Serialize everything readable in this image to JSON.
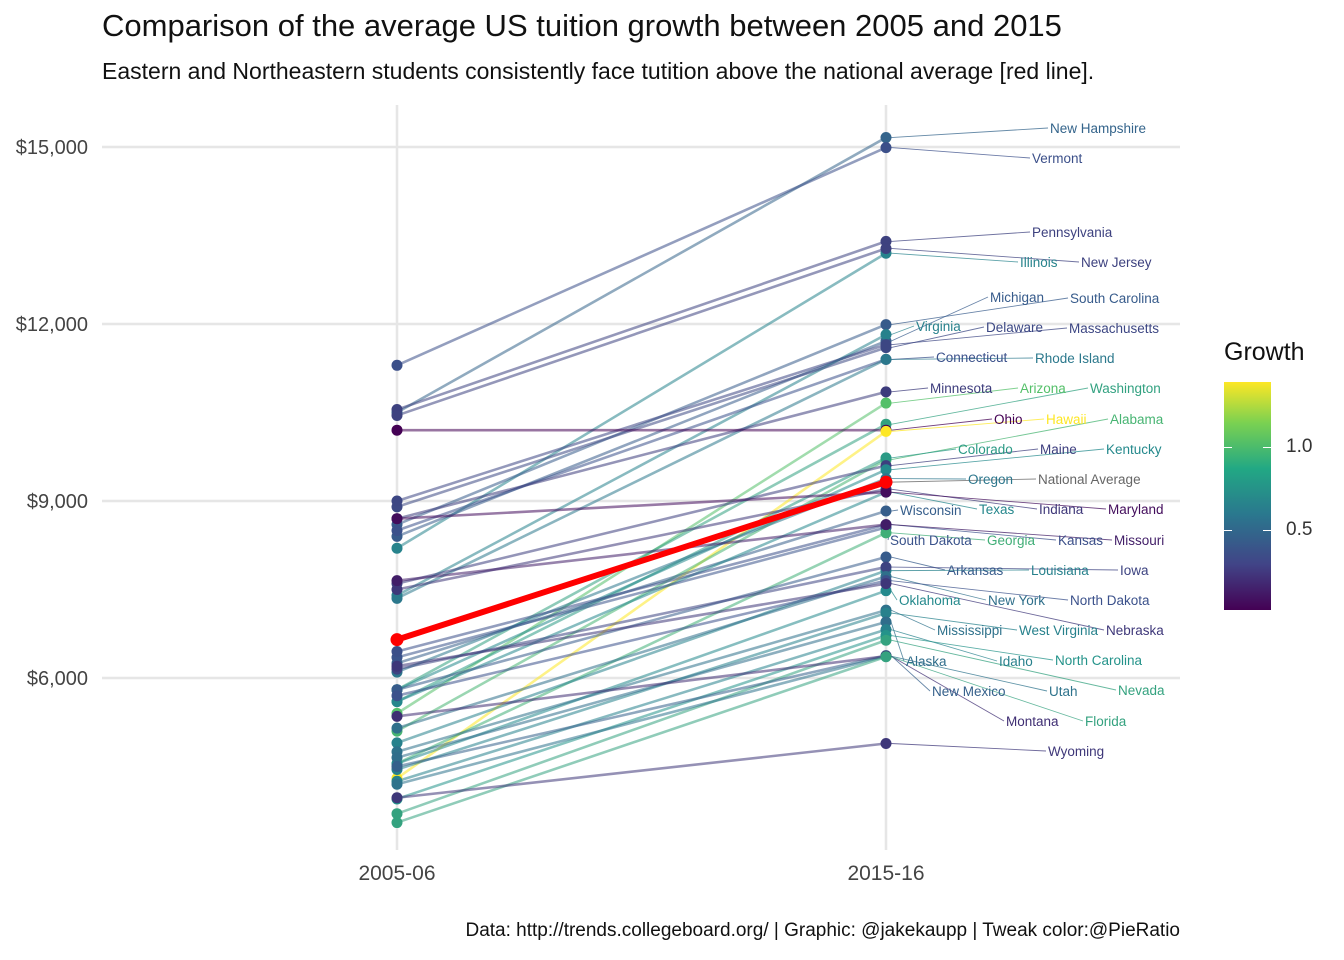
{
  "title": "Comparison of the average US tuition growth between 2005 and 2015",
  "subtitle": "Eastern and Northeastern students consistently face tutition above the national average [red line].",
  "caption": "Data: http://trends.collegeboard.org/ | Graphic: @jakekaupp | Tweak color:@PieRatio",
  "legend": {
    "title": "Growth",
    "ticks": [
      "1.0",
      "0.5"
    ]
  },
  "colors": {
    "highlight": "#ff0000",
    "grid": "#e5e5e5",
    "label_gray": "#666666"
  },
  "chart_data": {
    "type": "line",
    "x": [
      "2005-06",
      "2015-16"
    ],
    "yticks": [
      "$6,000",
      "$9,000",
      "$12,000",
      "$15,000"
    ],
    "ylim": [
      3000,
      15800
    ],
    "legend_position": "right",
    "series": [
      {
        "name": "New Hampshire",
        "values": [
          10500,
          15160
        ],
        "growth": 0.44
      },
      {
        "name": "Vermont",
        "values": [
          11300,
          14990
        ],
        "growth": 0.33
      },
      {
        "name": "Pennsylvania",
        "values": [
          10550,
          13400
        ],
        "growth": 0.27
      },
      {
        "name": "Illinois",
        "values": [
          8200,
          13200
        ],
        "growth": 0.61
      },
      {
        "name": "New Jersey",
        "values": [
          10450,
          13280
        ],
        "growth": 0.27
      },
      {
        "name": "Michigan",
        "values": [
          8400,
          11710
        ],
        "growth": 0.39
      },
      {
        "name": "South Carolina",
        "values": [
          8600,
          11990
        ],
        "growth": 0.39
      },
      {
        "name": "Virginia",
        "values": [
          7400,
          11820
        ],
        "growth": 0.6
      },
      {
        "name": "Delaware",
        "values": [
          8900,
          11600
        ],
        "growth": 0.3
      },
      {
        "name": "Massachusetts",
        "values": [
          9000,
          11650
        ],
        "growth": 0.29
      },
      {
        "name": "Connecticut",
        "values": [
          8500,
          11400
        ],
        "growth": 0.34
      },
      {
        "name": "Rhode Island",
        "values": [
          7350,
          11400
        ],
        "growth": 0.55
      },
      {
        "name": "Minnesota",
        "values": [
          8700,
          10850
        ],
        "growth": 0.25
      },
      {
        "name": "Arizona",
        "values": [
          5400,
          10660
        ],
        "growth": 0.97
      },
      {
        "name": "Washington",
        "values": [
          5800,
          10300
        ],
        "growth": 0.78
      },
      {
        "name": "Ohio",
        "values": [
          10200,
          10200
        ],
        "growth": 0.0
      },
      {
        "name": "Hawaii",
        "values": [
          4300,
          10180
        ],
        "growth": 1.37
      },
      {
        "name": "Alabama",
        "values": [
          5100,
          9700
        ],
        "growth": 0.9
      },
      {
        "name": "Colorado",
        "values": [
          5600,
          9730
        ],
        "growth": 0.74
      },
      {
        "name": "Maine",
        "values": [
          7600,
          9600
        ],
        "growth": 0.26
      },
      {
        "name": "Kentucky",
        "values": [
          5800,
          9530
        ],
        "growth": 0.64
      },
      {
        "name": "Oregon",
        "values": [
          6100,
          9380
        ],
        "growth": 0.54
      },
      {
        "name": "National Average",
        "values": [
          6650,
          9320
        ],
        "growth": 0.4
      },
      {
        "name": "Wisconsin",
        "values": [
          6250,
          8830
        ],
        "growth": 0.41
      },
      {
        "name": "Texas",
        "values": [
          5600,
          9150
        ],
        "growth": 0.63
      },
      {
        "name": "Indiana",
        "values": [
          7500,
          9200
        ],
        "growth": 0.23
      },
      {
        "name": "Maryland",
        "values": [
          8700,
          9150
        ],
        "growth": 0.05
      },
      {
        "name": "South Dakota",
        "values": [
          6350,
          8550
        ],
        "growth": 0.35
      },
      {
        "name": "Georgia",
        "values": [
          4550,
          8460
        ],
        "growth": 0.86
      },
      {
        "name": "Kansas",
        "values": [
          6450,
          8600
        ],
        "growth": 0.33
      },
      {
        "name": "Missouri",
        "values": [
          7650,
          8600
        ],
        "growth": 0.12
      },
      {
        "name": "Arkansas",
        "values": [
          5800,
          8050
        ],
        "growth": 0.39
      },
      {
        "name": "Louisiana",
        "values": [
          4900,
          7820
        ],
        "growth": 0.6
      },
      {
        "name": "Iowa",
        "values": [
          6150,
          7880
        ],
        "growth": 0.28
      },
      {
        "name": "Oklahoma",
        "values": [
          4550,
          7480
        ],
        "growth": 0.64
      },
      {
        "name": "New York",
        "values": [
          5150,
          7720
        ],
        "growth": 0.5
      },
      {
        "name": "North Dakota",
        "values": [
          5700,
          7650
        ],
        "growth": 0.34
      },
      {
        "name": "Mississippi",
        "values": [
          4750,
          7150
        ],
        "growth": 0.51
      },
      {
        "name": "West Virginia",
        "values": [
          4450,
          7100
        ],
        "growth": 0.6
      },
      {
        "name": "Nebraska",
        "values": [
          6200,
          7600
        ],
        "growth": 0.23
      },
      {
        "name": "Alaska",
        "values": [
          4650,
          6950
        ],
        "growth": 0.49
      },
      {
        "name": "Idaho",
        "values": [
          4250,
          6820
        ],
        "growth": 0.6
      },
      {
        "name": "North Carolina",
        "values": [
          3950,
          6720
        ],
        "growth": 0.7
      },
      {
        "name": "Nevada",
        "values": [
          3700,
          6640
        ],
        "growth": 0.79
      },
      {
        "name": "New Mexico",
        "values": [
          4500,
          6380
        ],
        "growth": 0.42
      },
      {
        "name": "Utah",
        "values": [
          4200,
          6370
        ],
        "growth": 0.52
      },
      {
        "name": "Montana",
        "values": [
          5350,
          6370
        ],
        "growth": 0.19
      },
      {
        "name": "Florida",
        "values": [
          3550,
          6360
        ],
        "growth": 0.79
      },
      {
        "name": "Wyoming",
        "values": [
          3970,
          4890
        ],
        "growth": 0.23
      }
    ]
  }
}
